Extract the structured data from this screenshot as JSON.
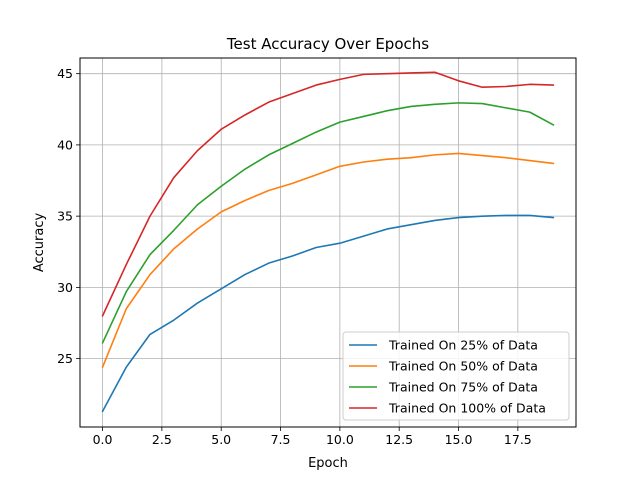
{
  "chart_data": {
    "type": "line",
    "title": "Test Accuracy Over Epochs",
    "xlabel": "Epoch",
    "ylabel": "Accuracy",
    "x": [
      0,
      1,
      2,
      3,
      4,
      5,
      6,
      7,
      8,
      9,
      10,
      11,
      12,
      13,
      14,
      15,
      16,
      17,
      18,
      19
    ],
    "xlim": [
      -0.95,
      19.95
    ],
    "ylim": [
      20.2,
      46.1
    ],
    "xticks": [
      0.0,
      2.5,
      5.0,
      7.5,
      10.0,
      12.5,
      15.0,
      17.5
    ],
    "xtick_labels": [
      "0.0",
      "2.5",
      "5.0",
      "7.5",
      "10.0",
      "12.5",
      "15.0",
      "17.5"
    ],
    "yticks": [
      25,
      30,
      35,
      40,
      45
    ],
    "ytick_labels": [
      "25",
      "30",
      "35",
      "40",
      "45"
    ],
    "grid": true,
    "legend_position": "bottom-right",
    "series": [
      {
        "name": "Trained On 25% of Data",
        "color": "#1f77b4",
        "values": [
          21.3,
          24.4,
          26.7,
          27.7,
          28.9,
          29.9,
          30.9,
          31.7,
          32.2,
          32.8,
          33.1,
          33.6,
          34.1,
          34.4,
          34.7,
          34.9,
          35.0,
          35.05,
          35.05,
          34.9
        ]
      },
      {
        "name": "Trained On 50% of Data",
        "color": "#ff7f0e",
        "values": [
          24.4,
          28.5,
          30.9,
          32.7,
          34.1,
          35.3,
          36.1,
          36.8,
          37.3,
          37.9,
          38.5,
          38.8,
          39.0,
          39.1,
          39.3,
          39.4,
          39.25,
          39.1,
          38.9,
          38.7
        ]
      },
      {
        "name": "Trained On 75% of Data",
        "color": "#2ca02c",
        "values": [
          26.1,
          29.7,
          32.3,
          34.0,
          35.8,
          37.1,
          38.3,
          39.3,
          40.1,
          40.9,
          41.6,
          42.0,
          42.4,
          42.7,
          42.85,
          42.95,
          42.9,
          42.6,
          42.3,
          41.4
        ]
      },
      {
        "name": "Trained On 100% of Data",
        "color": "#d62728",
        "values": [
          28.0,
          31.6,
          35.0,
          37.7,
          39.6,
          41.1,
          42.1,
          43.0,
          43.6,
          44.2,
          44.6,
          44.95,
          45.0,
          45.05,
          45.1,
          44.5,
          44.05,
          44.1,
          44.25,
          44.2
        ]
      }
    ]
  }
}
